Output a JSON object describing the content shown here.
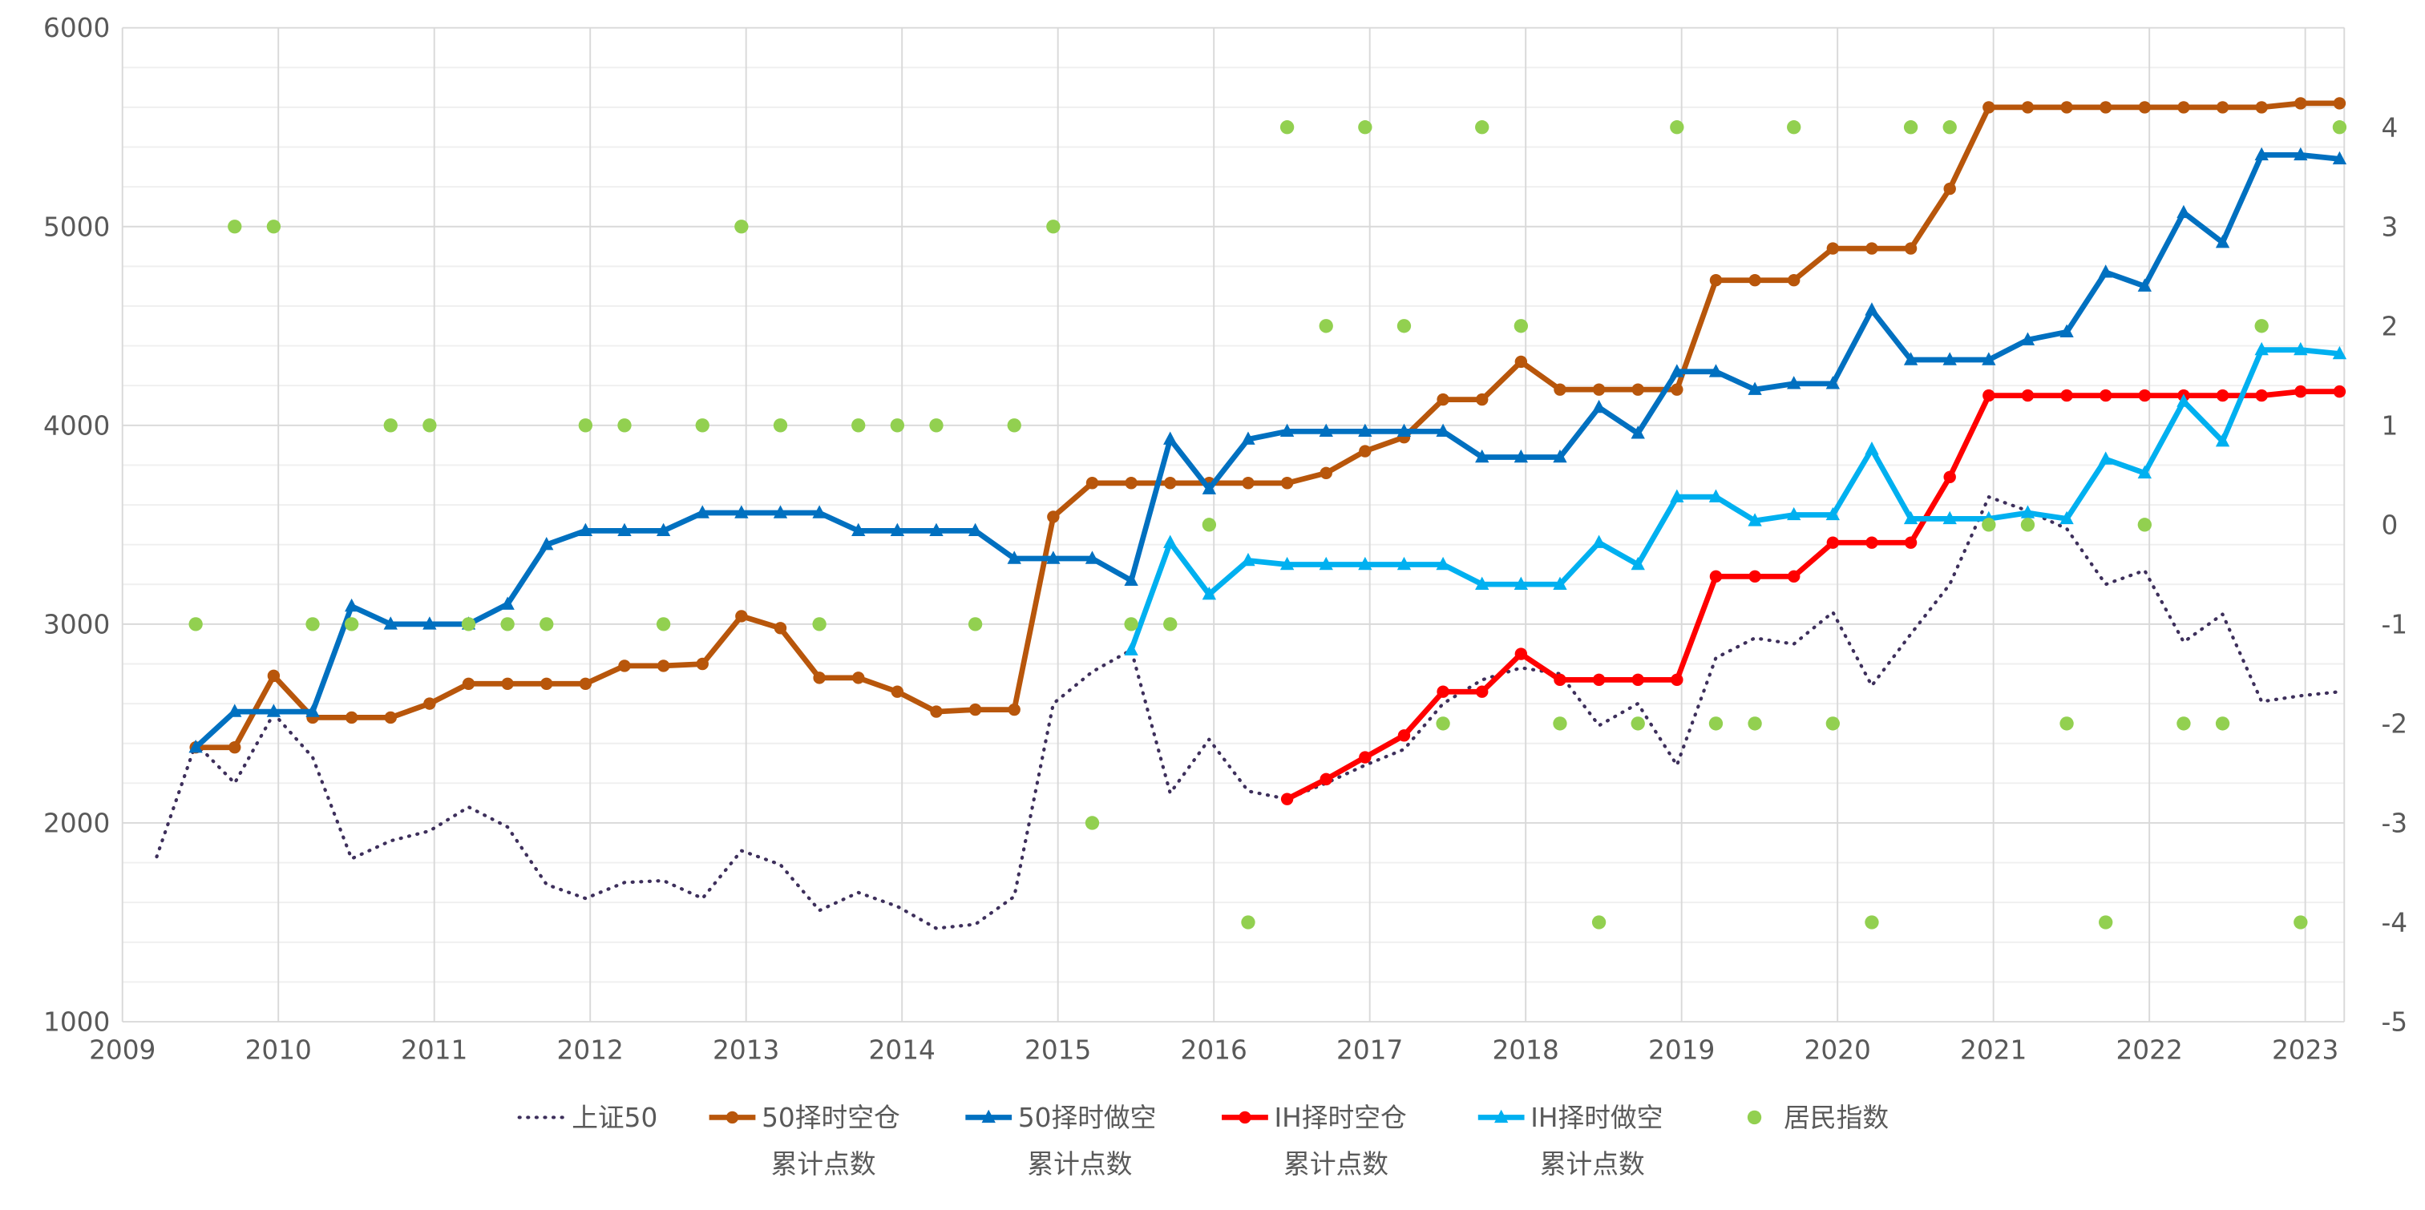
{
  "chart_data": {
    "type": "line",
    "title": "",
    "x_start": 2009.22,
    "x_step": 0.25,
    "xlim": [
      2009,
      2023.25
    ],
    "xticks": [
      "2009",
      "2010",
      "2011",
      "2012",
      "2013",
      "2014",
      "2015",
      "2016",
      "2017",
      "2018",
      "2019",
      "2020",
      "2021",
      "2022",
      "2023"
    ],
    "ylim_left": [
      1000,
      6000
    ],
    "yticks_left": [
      "1000",
      "2000",
      "3000",
      "4000",
      "5000",
      "6000"
    ],
    "ylim_right": [
      -5,
      5
    ],
    "yticks_right": [
      "-5",
      "-4",
      "-3",
      "-2",
      "-1",
      "0",
      "1",
      "2",
      "3",
      "4"
    ],
    "grid": true,
    "legend_position": "bottom",
    "series": [
      {
        "name": "上证50",
        "name2": "",
        "axis": "left",
        "style": "dotted",
        "color": "#3d2f5b",
        "start": 0,
        "values": [
          1830,
          2400,
          2200,
          2550,
          2330,
          1820,
          1910,
          1960,
          2080,
          1980,
          1690,
          1620,
          1700,
          1710,
          1620,
          1860,
          1790,
          1560,
          1650,
          1580,
          1470,
          1490,
          1630,
          2600,
          2760,
          2870,
          2150,
          2420,
          2160,
          2120,
          2200,
          2290,
          2370,
          2600,
          2720,
          2780,
          2750,
          2490,
          2600,
          2290,
          2830,
          2930,
          2900,
          3060,
          2690,
          2950,
          3200,
          3640,
          3570,
          3480,
          3200,
          3270,
          2910,
          3050,
          2610,
          2640,
          2660
        ]
      },
      {
        "name": "50择时空仓",
        "name2": "累计点数",
        "axis": "left",
        "style": "circle",
        "color": "#b8560b",
        "start": 1,
        "values": [
          2380,
          2380,
          2740,
          2530,
          2530,
          2530,
          2600,
          2700,
          2700,
          2700,
          2700,
          2790,
          2790,
          2800,
          3040,
          2980,
          2730,
          2730,
          2660,
          2560,
          2570,
          2570,
          3540,
          3710,
          3710,
          3710,
          3710,
          3710,
          3710,
          3760,
          3870,
          3940,
          4130,
          4130,
          4320,
          4180,
          4180,
          4180,
          4180,
          4730,
          4730,
          4730,
          4890,
          4890,
          4890,
          5190,
          5600,
          5600,
          5600,
          5600,
          5600,
          5600,
          5600,
          5600,
          5620,
          5620
        ]
      },
      {
        "name": "50择时做空",
        "name2": "累计点数",
        "axis": "left",
        "style": "triangle",
        "color": "#0070c0",
        "start": 1,
        "values": [
          2380,
          2560,
          2560,
          2560,
          3090,
          3000,
          3000,
          3000,
          3100,
          3400,
          3470,
          3470,
          3470,
          3560,
          3560,
          3560,
          3560,
          3470,
          3470,
          3470,
          3470,
          3330,
          3330,
          3330,
          3220,
          3930,
          3680,
          3930,
          3970,
          3970,
          3970,
          3970,
          3970,
          3840,
          3840,
          3840,
          4090,
          3960,
          4270,
          4270,
          4180,
          4210,
          4210,
          4580,
          4330,
          4330,
          4330,
          4430,
          4470,
          4770,
          4700,
          5070,
          4920,
          5360,
          5360,
          5340
        ]
      },
      {
        "name": "IH择时空仓",
        "name2": "累计点数",
        "axis": "left",
        "style": "circle",
        "color": "#ff0000",
        "start": 29,
        "values": [
          2120,
          2220,
          2330,
          2440,
          2660,
          2660,
          2850,
          2720,
          2720,
          2720,
          2720,
          3240,
          3240,
          3240,
          3410,
          3410,
          3410,
          3740,
          4150,
          4150,
          4150,
          4150,
          4150,
          4150,
          4150,
          4150,
          4170,
          4170
        ]
      },
      {
        "name": "IH择时做空",
        "name2": "累计点数",
        "axis": "left",
        "style": "triangle",
        "color": "#00b0f0",
        "start": 25,
        "values": [
          2870,
          3410,
          3150,
          3320,
          3300,
          3300,
          3300,
          3300,
          3300,
          3200,
          3200,
          3200,
          3410,
          3300,
          3640,
          3640,
          3520,
          3550,
          3550,
          3880,
          3530,
          3530,
          3530,
          3560,
          3530,
          3830,
          3760,
          4120,
          3920,
          4380,
          4380,
          4360
        ]
      },
      {
        "name": "居民指数",
        "name2": "",
        "axis": "right",
        "style": "scatter",
        "color": "#92d050",
        "start": 1,
        "values": [
          -1,
          3,
          3,
          -1,
          -1,
          1,
          1,
          -1,
          -1,
          -1,
          1,
          1,
          -1,
          1,
          3,
          1,
          -1,
          1,
          1,
          1,
          -1,
          1,
          3,
          -3,
          -1,
          -1,
          0,
          -4,
          4,
          2,
          4,
          2,
          -2,
          4,
          2,
          -2,
          -4,
          -2,
          4,
          -2,
          -2,
          4,
          -2,
          -4,
          4,
          4,
          0,
          0,
          -2,
          -4,
          0,
          -2,
          -2,
          2,
          -4,
          4
        ]
      }
    ]
  }
}
